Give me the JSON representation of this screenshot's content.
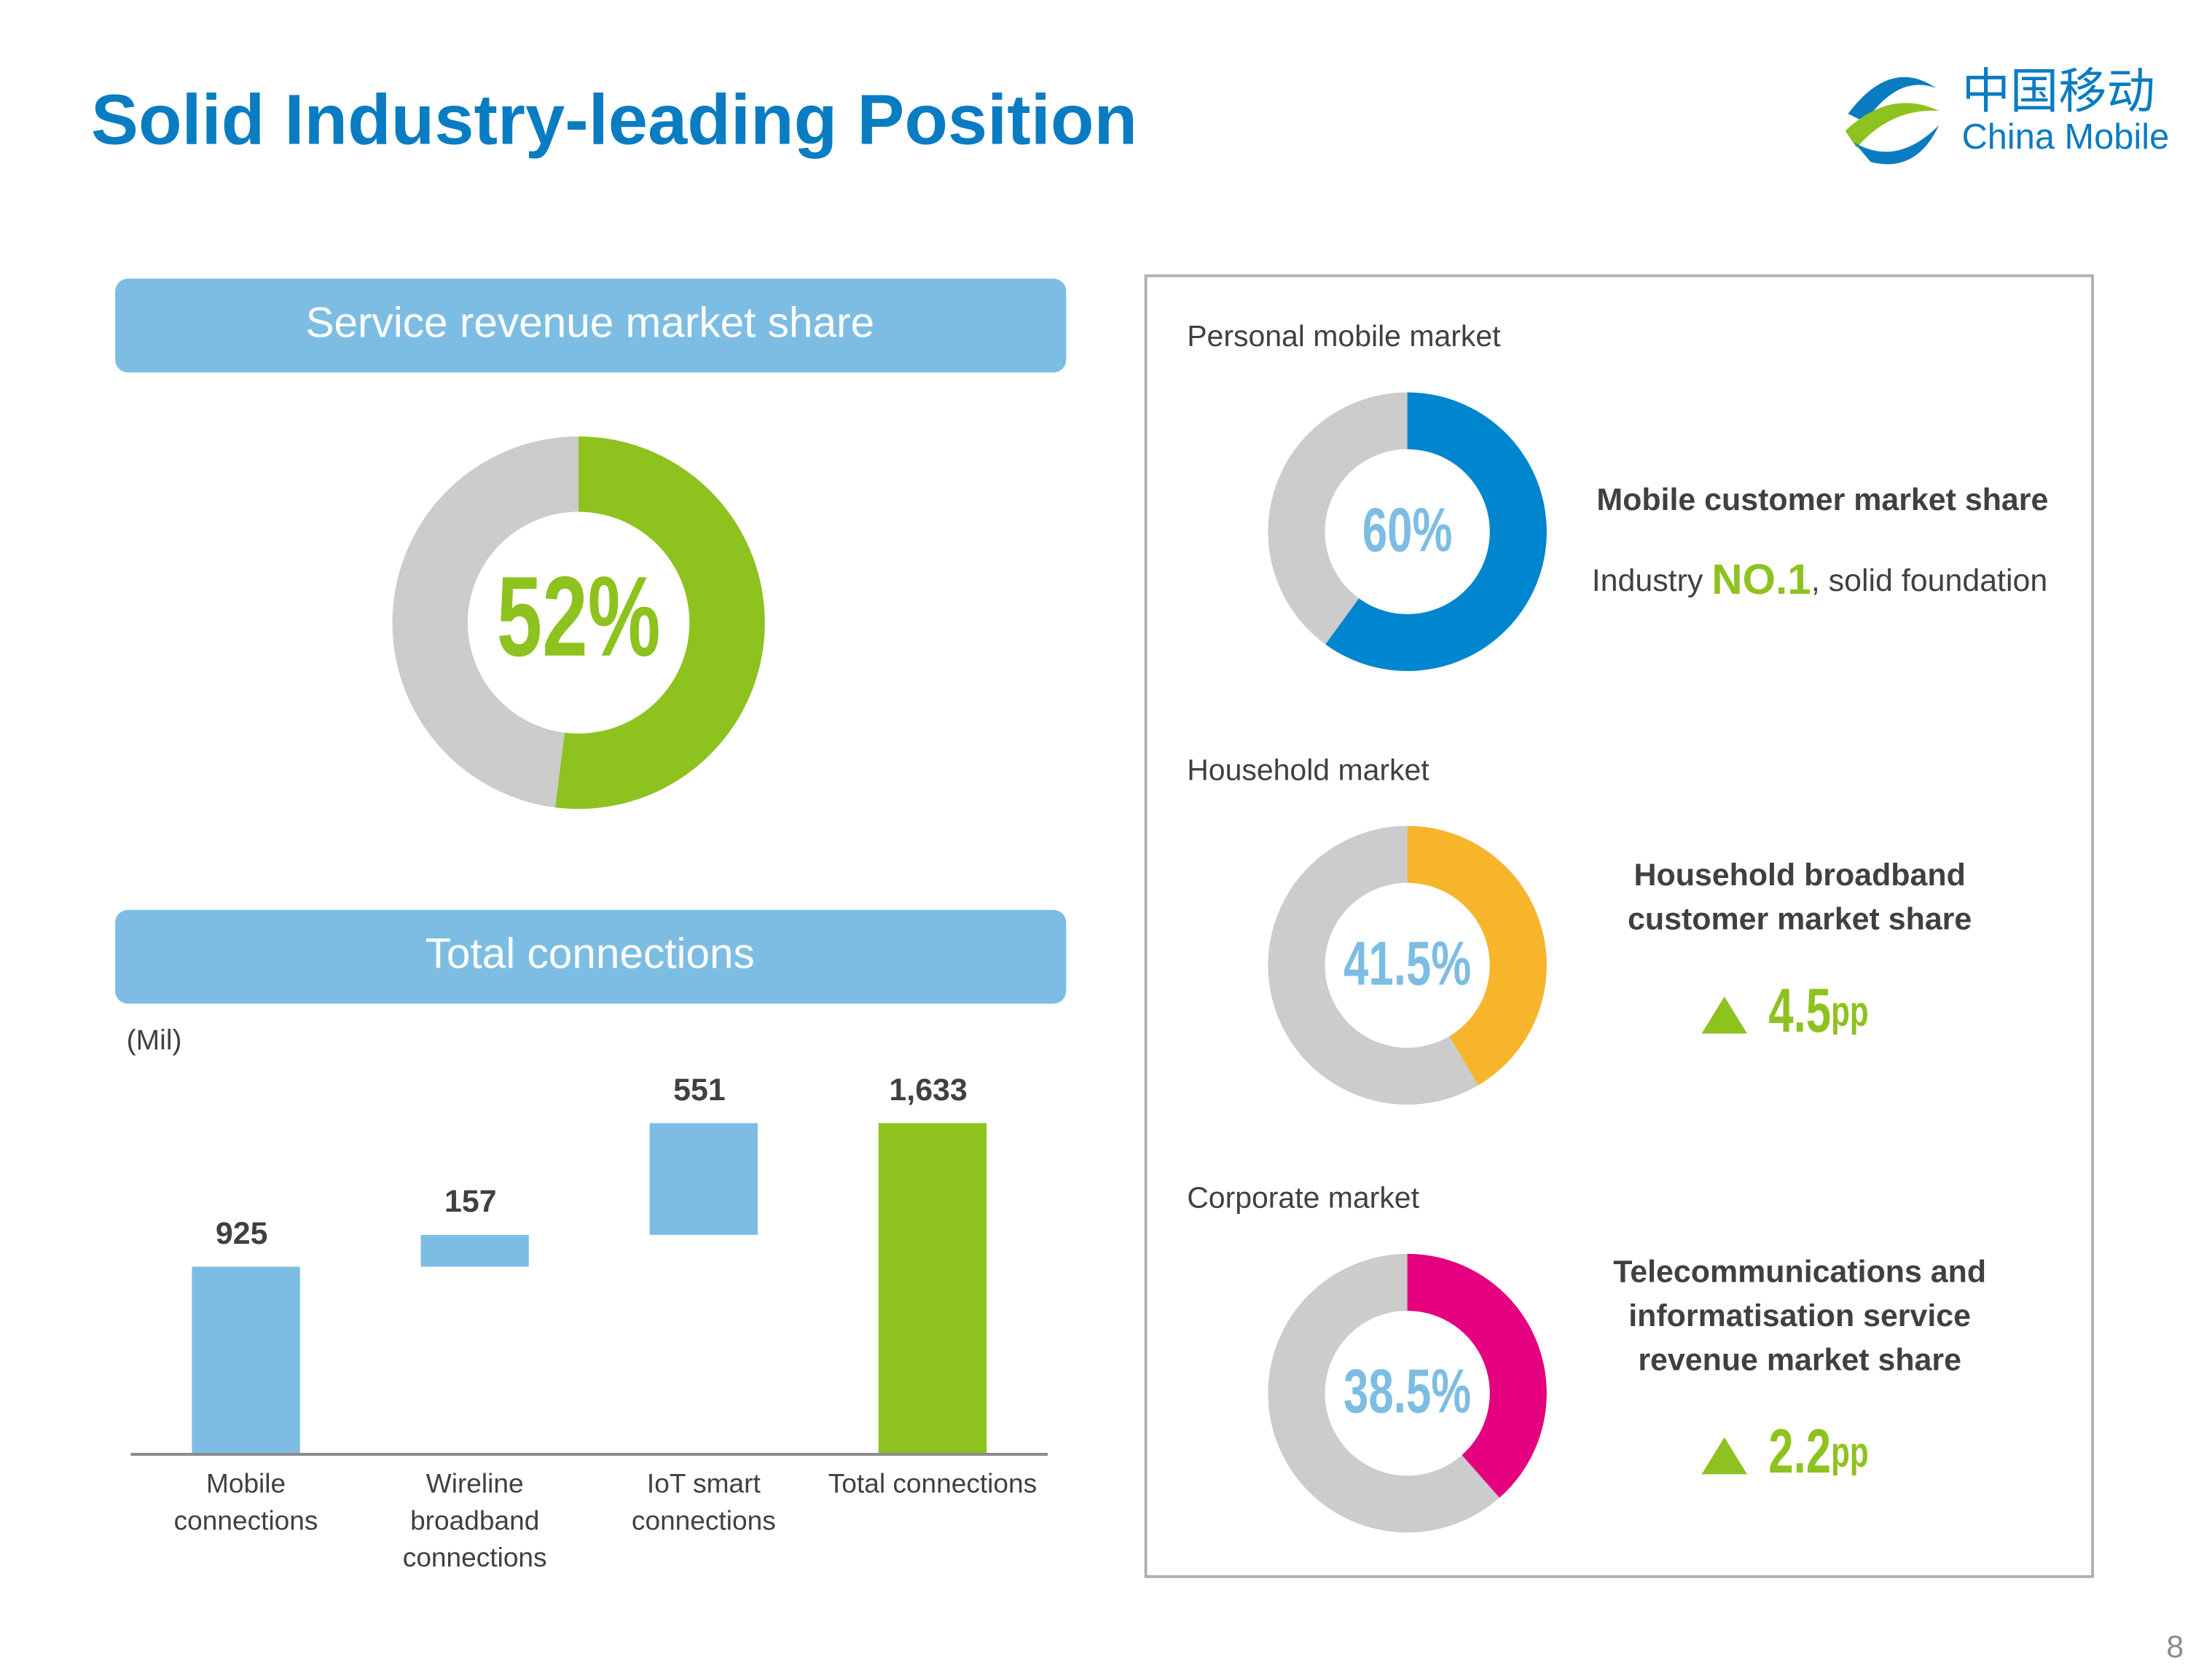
{
  "title": "Solid Industry-leading Position",
  "logo": {
    "chinese": "中国移动",
    "english": "China Mobile"
  },
  "page_number": "8",
  "chart_data": [
    {
      "type": "donut",
      "title": "Service revenue market share",
      "values": [
        52
      ],
      "value_labels": [
        "52%"
      ],
      "color": "#8dc21f",
      "rest_color": "#cccccc"
    },
    {
      "type": "waterfall",
      "title": "Total connections",
      "unit": "(Mil)",
      "categories": [
        [
          "Mobile",
          "connections"
        ],
        [
          "Wireline",
          "broadband",
          "connections"
        ],
        [
          "IoT smart",
          "connections"
        ],
        [
          "Total connections"
        ]
      ],
      "values": [
        925,
        157,
        551,
        1633
      ],
      "value_labels": [
        "925",
        "157",
        "551",
        "1,633"
      ],
      "measure": [
        "relative",
        "relative",
        "relative",
        "total"
      ],
      "colors": [
        "#7dbde3",
        "#7dbde3",
        "#7dbde3",
        "#8dc21f"
      ]
    },
    {
      "type": "donut",
      "section": "Personal mobile market",
      "values": [
        60
      ],
      "value_labels": [
        "60%"
      ],
      "color": "#0085cf",
      "rest_color": "#cccccc",
      "heading": [
        "Mobile customer market share"
      ],
      "note": [
        "Industry ",
        "NO.1",
        ", solid foundation"
      ]
    },
    {
      "type": "donut",
      "section": "Household market",
      "values": [
        41.5
      ],
      "value_labels": [
        "41.5%"
      ],
      "color": "#f7b52c",
      "rest_color": "#cccccc",
      "heading": [
        "Household broadband",
        "customer market share"
      ],
      "change": "4.5",
      "change_unit": "pp"
    },
    {
      "type": "donut",
      "section": "Corporate market",
      "values": [
        38.5
      ],
      "value_labels": [
        "38.5%"
      ],
      "color": "#e4007f",
      "rest_color": "#cccccc",
      "heading": [
        "Telecommunications and",
        "informatisation service",
        "revenue market share"
      ],
      "change": "2.2",
      "change_unit": "pp"
    }
  ]
}
